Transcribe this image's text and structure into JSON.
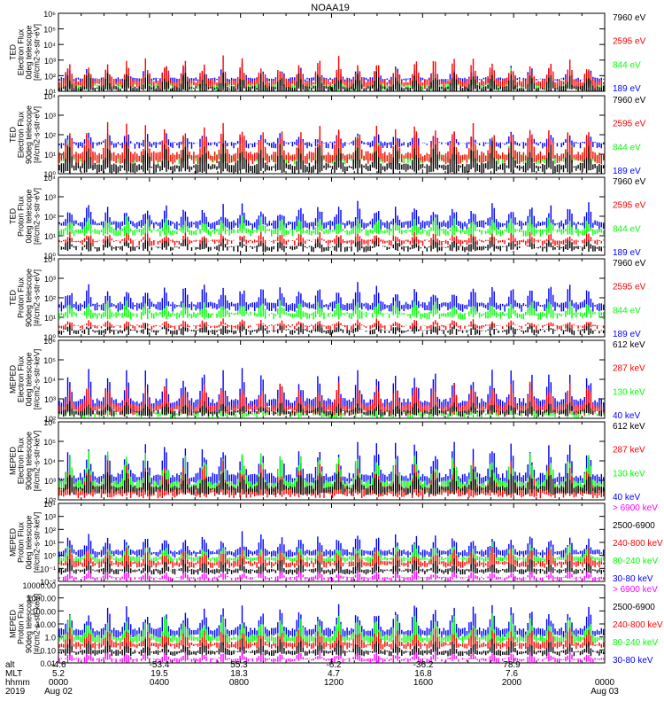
{
  "title": "NOAA19",
  "footer": {
    "rows": [
      {
        "label": "alt",
        "values": [
          "-4.6",
          "-53.4",
          "55.3",
          "-6.2",
          "-36.2",
          "78.9",
          ""
        ]
      },
      {
        "label": "MLT",
        "values": [
          "5.2",
          "19.5",
          "18.3",
          "4.7",
          "16.8",
          "7.6",
          ""
        ]
      },
      {
        "label": "hhmm",
        "values": [
          "0000",
          "0400",
          "0800",
          "1200",
          "1600",
          "2000",
          "0000"
        ]
      },
      {
        "label": "2019",
        "values": [
          "Aug 02",
          "",
          "",
          "",
          "",
          "",
          "Aug 03"
        ]
      }
    ]
  },
  "colors": {
    "black": "#000000",
    "red": "#ff0000",
    "green": "#00ff00",
    "blue": "#0000ff",
    "magenta": "#ff00ff"
  },
  "chart_data": [
    {
      "type": "line",
      "ylabel": [
        "TED",
        "Electron Flux",
        "0deg telescope",
        "[#/cm2-s-str-eV]"
      ],
      "yscale": "log",
      "ylim": [
        10,
        1000000
      ],
      "yticks": [
        "10¹",
        "10²",
        "10³",
        "10⁴",
        "10⁵",
        "10⁶"
      ],
      "legend": [
        {
          "label": "7960 eV",
          "color": "#000000"
        },
        {
          "label": "2595 eV",
          "color": "#ff0000"
        },
        {
          "label": "844 eV",
          "color": "#00ff00"
        },
        {
          "label": "189 eV",
          "color": "#0000ff"
        }
      ],
      "series_levels": [
        {
          "name": "189 eV",
          "base_log": 1.6,
          "peak_log": 2.8
        },
        {
          "name": "844 eV",
          "base_log": 1.2,
          "peak_log": 2.6
        },
        {
          "name": "2595 eV",
          "base_log": 1.3,
          "peak_log": 3.4
        },
        {
          "name": "7960 eV",
          "base_log": 1.0,
          "peak_log": 2.4
        }
      ]
    },
    {
      "type": "line",
      "ylabel": [
        "TED",
        "Electron Flux",
        "90deg telescope",
        "[#/cm2-s-str-eV]"
      ],
      "yscale": "log",
      "ylim": [
        1,
        100000
      ],
      "yticks": [
        "10⁰",
        "10¹",
        "10²",
        "10³",
        "10⁴"
      ],
      "legend": [
        {
          "label": "7960 eV",
          "color": "#000000"
        },
        {
          "label": "2595 eV",
          "color": "#ff0000"
        },
        {
          "label": "844 eV",
          "color": "#00ff00"
        },
        {
          "label": "189 eV",
          "color": "#0000ff"
        }
      ],
      "series_levels": [
        {
          "name": "189 eV",
          "base_log": 1.8,
          "peak_log": 2.8
        },
        {
          "name": "844 eV",
          "base_log": 0.8,
          "peak_log": 2.6
        },
        {
          "name": "2595 eV",
          "base_log": 0.8,
          "peak_log": 3.4
        },
        {
          "name": "7960 eV",
          "base_log": 0.2,
          "peak_log": 2.2
        }
      ]
    },
    {
      "type": "line",
      "ylabel": [
        "TED",
        "Proton Flux",
        "0deg telescope",
        "[#/cm2-s-str-eV]"
      ],
      "yscale": "log",
      "ylim": [
        1,
        100000
      ],
      "yticks": [
        "10⁰",
        "10¹",
        "10²",
        "10³",
        "10⁴"
      ],
      "legend": [
        {
          "label": "7960 eV",
          "color": "#000000"
        },
        {
          "label": "2595 eV",
          "color": "#ff0000"
        },
        {
          "label": "844 eV",
          "color": "#00ff00"
        },
        {
          "label": "189 eV",
          "color": "#0000ff"
        }
      ],
      "series_levels": [
        {
          "name": "189 eV",
          "base_log": 1.8,
          "peak_log": 3.6
        },
        {
          "name": "844 eV",
          "base_log": 1.4,
          "peak_log": 2.6
        },
        {
          "name": "2595 eV",
          "base_log": 0.8,
          "peak_log": 1.6
        },
        {
          "name": "7960 eV",
          "base_log": 0.4,
          "peak_log": 1.2
        }
      ]
    },
    {
      "type": "line",
      "ylabel": [
        "TED",
        "Proton Flux",
        "90deg telescope",
        "[#/cm2-s-str-eV]"
      ],
      "yscale": "log",
      "ylim": [
        1,
        100000
      ],
      "yticks": [
        "10⁰",
        "10¹",
        "10²",
        "10³",
        "10⁴"
      ],
      "legend": [
        {
          "label": "7960 eV",
          "color": "#000000"
        },
        {
          "label": "2595 eV",
          "color": "#ff0000"
        },
        {
          "label": "844 eV",
          "color": "#00ff00"
        },
        {
          "label": "189 eV",
          "color": "#0000ff"
        }
      ],
      "series_levels": [
        {
          "name": "189 eV",
          "base_log": 1.8,
          "peak_log": 3.6
        },
        {
          "name": "844 eV",
          "base_log": 1.3,
          "peak_log": 2.5
        },
        {
          "name": "2595 eV",
          "base_log": 0.6,
          "peak_log": 1.2
        },
        {
          "name": "7960 eV",
          "base_log": 0.3,
          "peak_log": 0.9
        }
      ]
    },
    {
      "type": "line",
      "ylabel": [
        "MEPED",
        "Electron Flux",
        "0deg telescope",
        "[#/cm2-s-str-keV]"
      ],
      "yscale": "log",
      "ylim": [
        100,
        10000000
      ],
      "yticks": [
        "10²",
        "10³",
        "10⁴",
        "10⁵",
        "10⁶"
      ],
      "legend": [
        {
          "label": "612 keV",
          "color": "#000000"
        },
        {
          "label": "287 keV",
          "color": "#ff0000"
        },
        {
          "label": "130 keV",
          "color": "#00ff00"
        },
        {
          "label": "40 keV",
          "color": "#0000ff"
        }
      ],
      "series_levels": [
        {
          "name": "40 keV",
          "base_log": 2.6,
          "peak_log": 5.4
        },
        {
          "name": "130 keV",
          "base_log": 2.2,
          "peak_log": 3.0
        },
        {
          "name": "287 keV",
          "base_log": 2.4,
          "peak_log": 4.6
        },
        {
          "name": "612 keV",
          "base_log": 2.3,
          "peak_log": 3.2
        }
      ]
    },
    {
      "type": "line",
      "ylabel": [
        "MEPED",
        "Electron Flux",
        "90deg telescope",
        "[#/cm2-s-str-keV]"
      ],
      "yscale": "log",
      "ylim": [
        100,
        10000000
      ],
      "yticks": [
        "10²",
        "10³",
        "10⁴",
        "10⁵",
        "10⁶"
      ],
      "legend": [
        {
          "label": "612 keV",
          "color": "#000000"
        },
        {
          "label": "287 keV",
          "color": "#ff0000"
        },
        {
          "label": "130 keV",
          "color": "#00ff00"
        },
        {
          "label": "40 keV",
          "color": "#0000ff"
        }
      ],
      "series_levels": [
        {
          "name": "40 keV",
          "base_log": 3.0,
          "peak_log": 6.0
        },
        {
          "name": "130 keV",
          "base_log": 2.6,
          "peak_log": 5.4
        },
        {
          "name": "287 keV",
          "base_log": 2.3,
          "peak_log": 4.6
        },
        {
          "name": "612 keV",
          "base_log": 2.5,
          "peak_log": 4.2
        }
      ]
    },
    {
      "type": "line",
      "ylabel": [
        "MEPED",
        "Proton Flux",
        "0deg telescope",
        "[#/cm2-s-str-keV]"
      ],
      "yscale": "log",
      "ylim": [
        0.01,
        100000
      ],
      "yticks": [
        "10⁻²",
        "10⁻¹",
        "10⁰",
        "10¹",
        "10²",
        "10³",
        "10⁴"
      ],
      "legend": [
        {
          "label": "> 6900 keV",
          "color": "#ff00ff"
        },
        {
          "label": "2500-6900",
          "color": "#000000"
        },
        {
          "label": "240-800 keV",
          "color": "#ff0000"
        },
        {
          "label": "80-240 keV",
          "color": "#00ff00"
        },
        {
          "label": "30-80 keV",
          "color": "#0000ff"
        }
      ],
      "series_levels": [
        {
          "name": "30-80 keV",
          "base_log": 0.3,
          "peak_log": 2.6
        },
        {
          "name": "80-240 keV",
          "base_log": -0.2,
          "peak_log": 1.6
        },
        {
          "name": "240-800 keV",
          "base_log": -0.6,
          "peak_log": 1.2
        },
        {
          "name": "2500-6900",
          "base_log": -1.2,
          "peak_log": 0.2
        },
        {
          "name": "> 6900 keV",
          "base_log": -1.8,
          "peak_log": -0.9
        }
      ]
    },
    {
      "type": "line",
      "ylabel": [
        "MEPED",
        "Proton Flux",
        "90deg telescope",
        "[#/cm2-s-str-keV]"
      ],
      "yscale": "log",
      "ylim": [
        0.01,
        100000
      ],
      "yticks": [
        "0.01",
        "0.10",
        "1.0",
        "10.00",
        "100.00",
        "1000.00",
        "10000.00"
      ],
      "legend": [
        {
          "label": "> 6900 keV",
          "color": "#ff00ff"
        },
        {
          "label": "2500-6900",
          "color": "#000000"
        },
        {
          "label": "240-800 keV",
          "color": "#ff0000"
        },
        {
          "label": "80-240 keV",
          "color": "#00ff00"
        },
        {
          "label": "30-80 keV",
          "color": "#0000ff"
        }
      ],
      "series_levels": [
        {
          "name": "30-80 keV",
          "base_log": 0.4,
          "peak_log": 3.6
        },
        {
          "name": "80-240 keV",
          "base_log": -0.1,
          "peak_log": 2.6
        },
        {
          "name": "240-800 keV",
          "base_log": -0.6,
          "peak_log": 1.4
        },
        {
          "name": "2500-6900",
          "base_log": -1.2,
          "peak_log": 0.3
        },
        {
          "name": "> 6900 keV",
          "base_log": -1.8,
          "peak_log": -0.8
        }
      ]
    }
  ]
}
